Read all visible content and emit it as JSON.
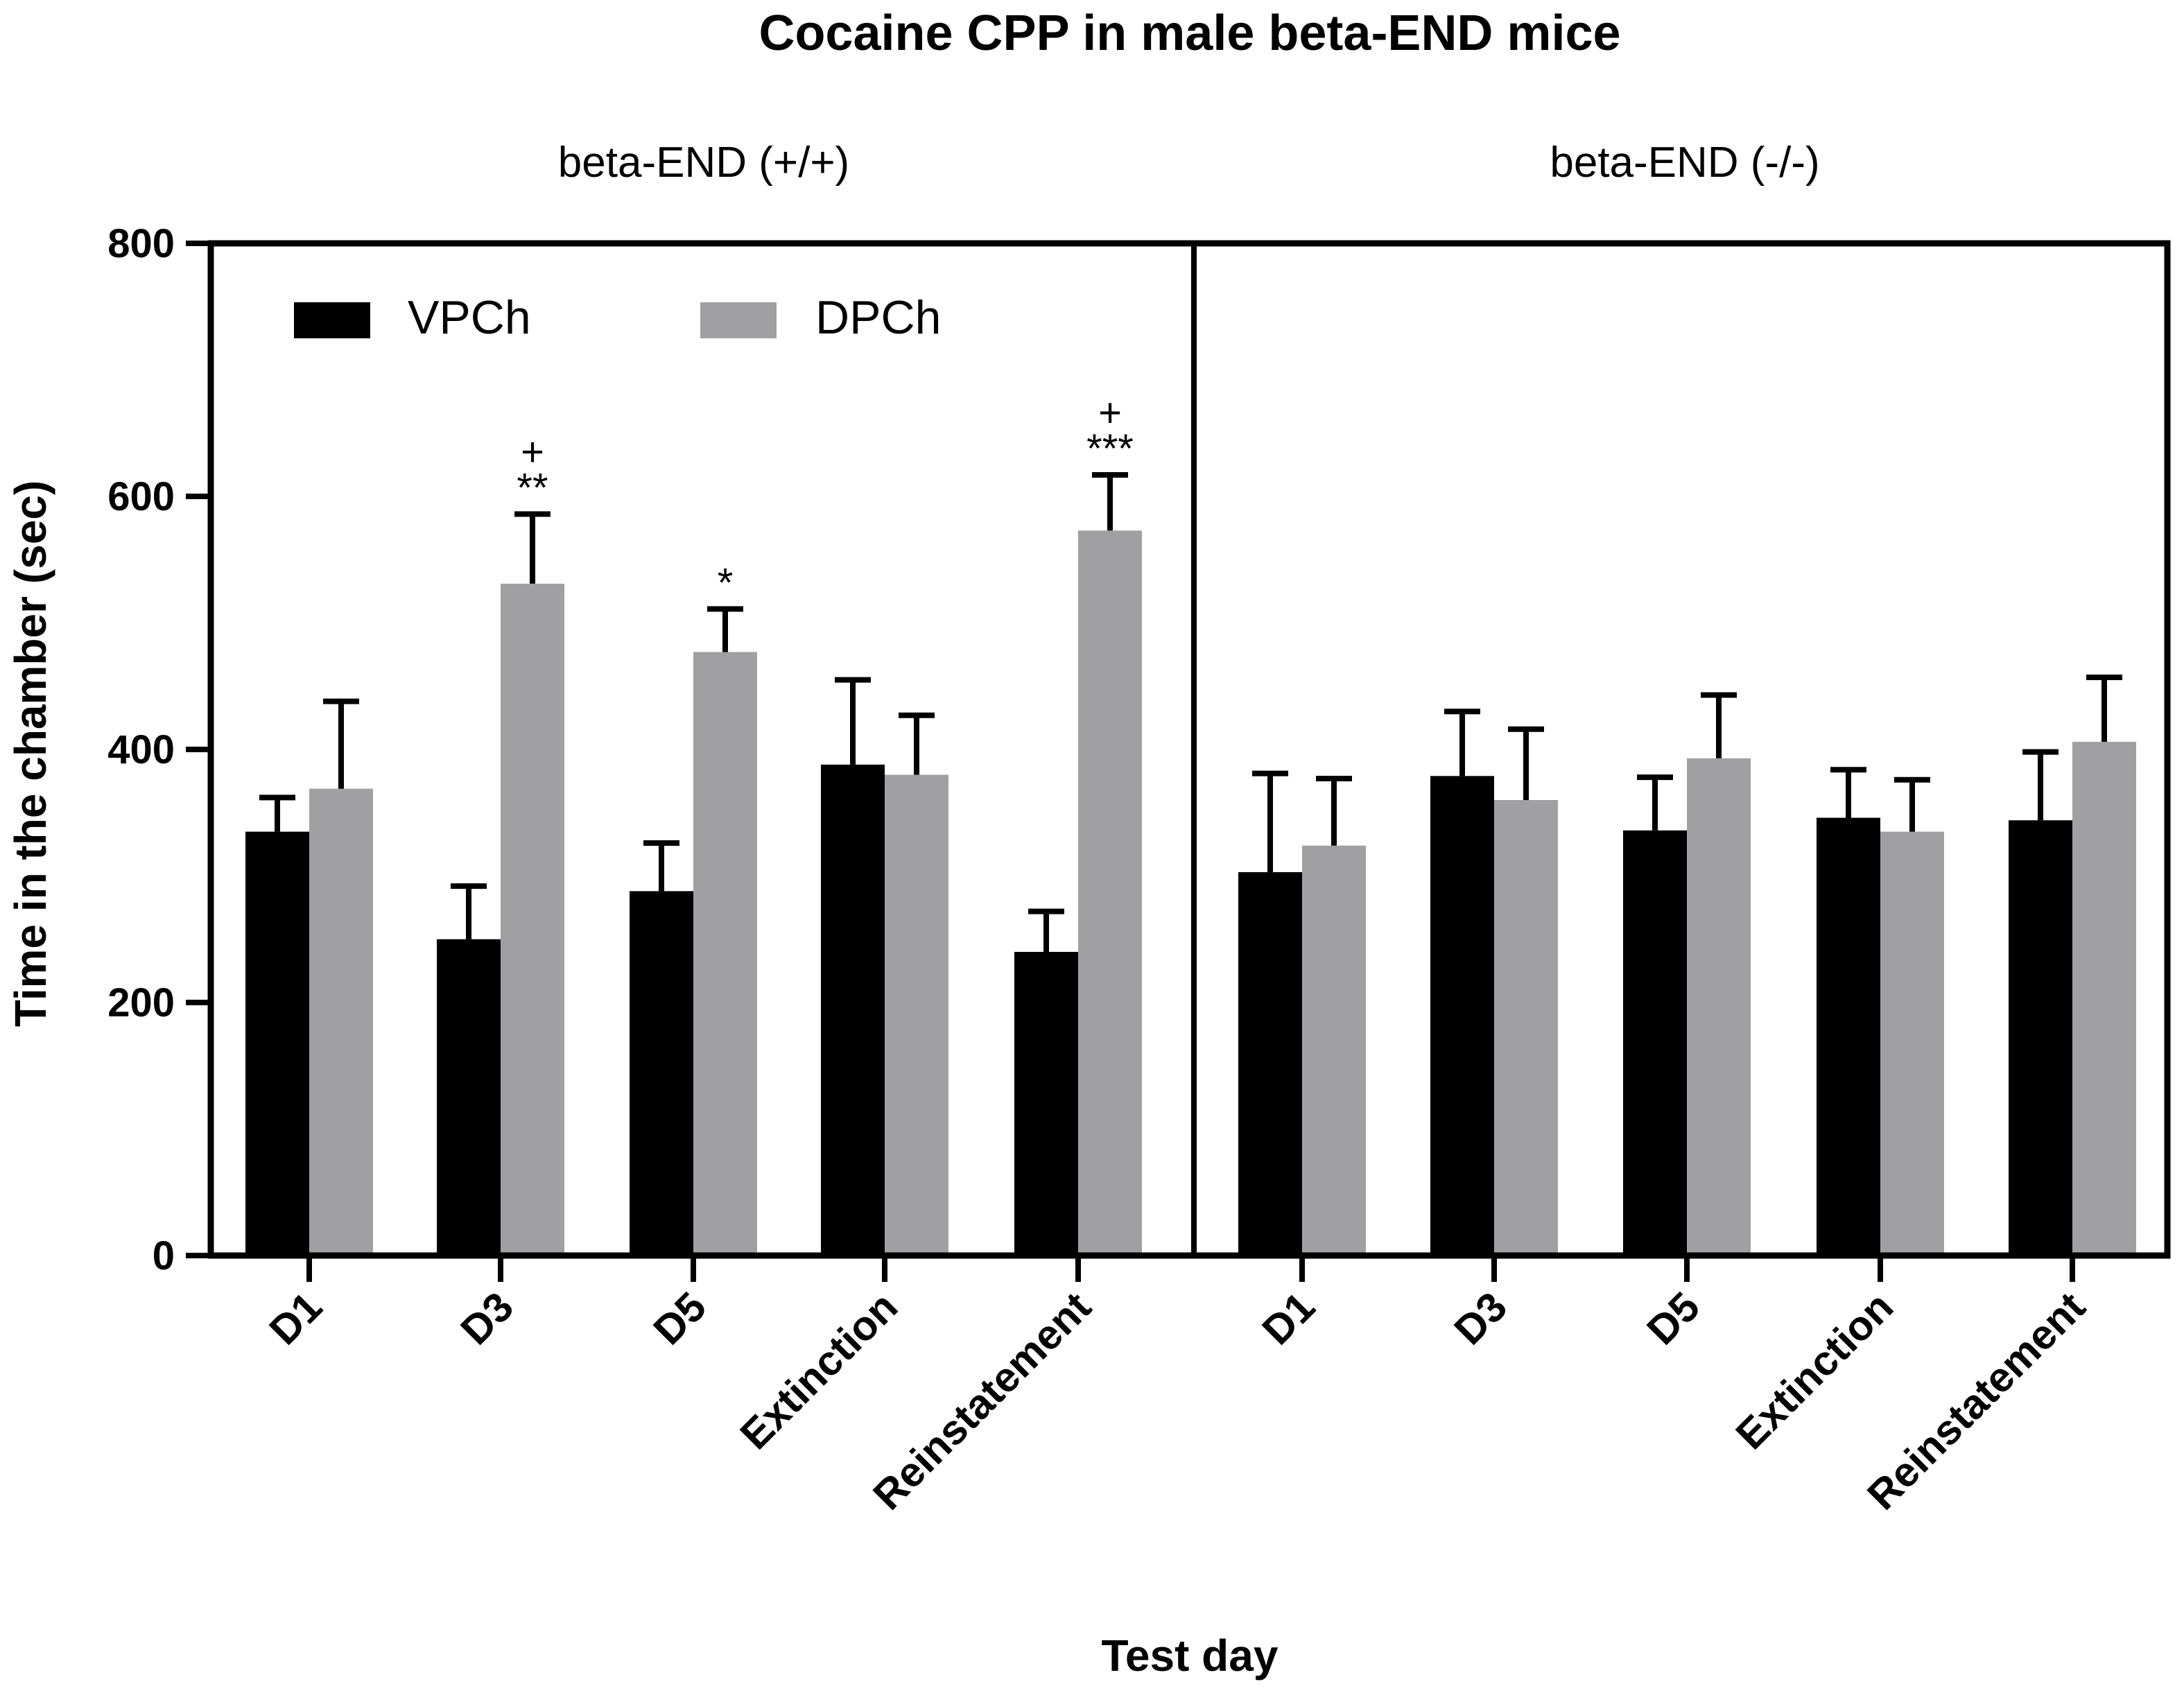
{
  "chart_data": {
    "type": "bar",
    "title": "Cocaine CPP in male beta-END mice",
    "xlabel": "Test day",
    "ylabel": "Time in the chamber (sec)",
    "ylim": [
      0,
      800
    ],
    "yticks": [
      0,
      200,
      400,
      600,
      800
    ],
    "grid": false,
    "legend": {
      "placement": "top-left",
      "entries": [
        {
          "name": "VPCh",
          "color": "#000000"
        },
        {
          "name": "DPCh",
          "color": "#a0a0a3"
        }
      ]
    },
    "panels": [
      {
        "title": "beta-END (+/+)",
        "categories": [
          "D1",
          "D3",
          "D5",
          "Extinction",
          "Reinstatement"
        ],
        "series": [
          {
            "name": "VPCh",
            "values": [
              335,
              250,
              288,
              388,
              240
            ],
            "errors": [
              27,
              42,
              38,
              67,
              32
            ]
          },
          {
            "name": "DPCh",
            "values": [
              369,
              531,
              477,
              380,
              573
            ],
            "errors": [
              69,
              55,
              34,
              47,
              44
            ]
          }
        ],
        "annotations": [
          {
            "category": "D3",
            "series": "DPCh",
            "lines": [
              "+",
              "**"
            ]
          },
          {
            "category": "D5",
            "series": "DPCh",
            "lines": [
              "*"
            ]
          },
          {
            "category": "Reinstatement",
            "series": "DPCh",
            "lines": [
              "+",
              "***"
            ]
          }
        ]
      },
      {
        "title": "beta-END (-/-)",
        "categories": [
          "D1",
          "D3",
          "D5",
          "Extinction",
          "Reinstatement"
        ],
        "series": [
          {
            "name": "VPCh",
            "values": [
              303,
              379,
              336,
              346,
              344
            ],
            "errors": [
              78,
              51,
              42,
              38,
              54
            ]
          },
          {
            "name": "DPCh",
            "values": [
              324,
              360,
              393,
              335,
              406
            ],
            "errors": [
              53,
              56,
              50,
              41,
              51
            ]
          }
        ],
        "annotations": []
      }
    ]
  }
}
